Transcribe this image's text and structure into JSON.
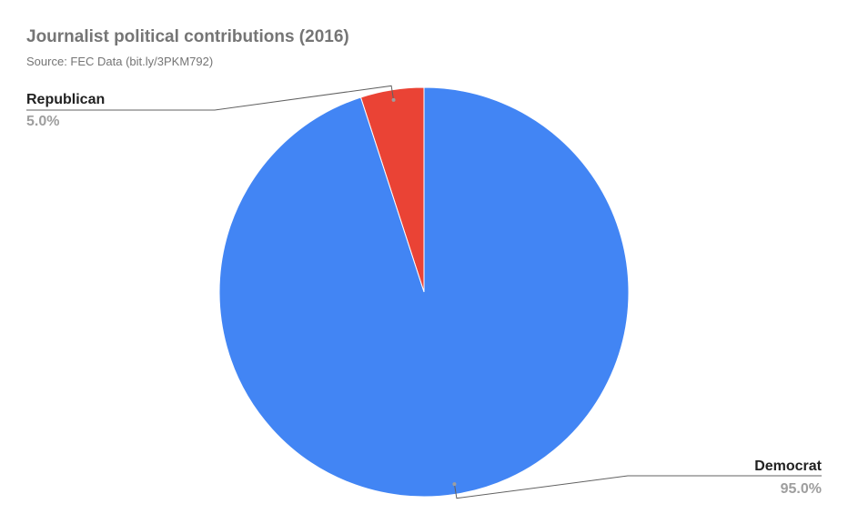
{
  "chart_data": {
    "type": "pie",
    "title": "Journalist political contributions (2016)",
    "subtitle": "Source: FEC Data (bit.ly/3PKM792)",
    "slices": [
      {
        "label": "Republican",
        "value": 5.0,
        "display": "5.0%",
        "color": "#ea4335"
      },
      {
        "label": "Democrat",
        "value": 95.0,
        "display": "95.0%",
        "color": "#4285f4"
      }
    ],
    "start_angle_deg": 0,
    "direction": "counterclockwise",
    "legend": "none",
    "label_style": "outside-with-leader-lines"
  }
}
